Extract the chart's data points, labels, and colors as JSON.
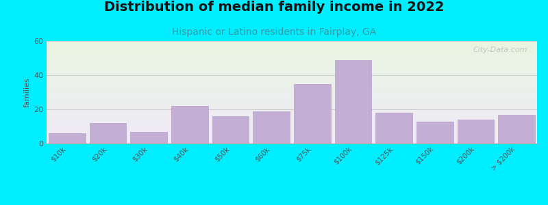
{
  "title": "Distribution of median family income in 2022",
  "subtitle": "Hispanic or Latino residents in Fairplay, GA",
  "categories": [
    "$10k",
    "$20k",
    "$30k",
    "$40k",
    "$50k",
    "$60k",
    "$75k",
    "$100k",
    "$125k",
    "$150k",
    "$200k",
    "> $200k"
  ],
  "values": [
    6,
    12,
    7,
    22,
    16,
    19,
    35,
    49,
    18,
    13,
    14,
    17
  ],
  "bar_color": "#c4afd4",
  "bar_edge_color": "#b8a0cc",
  "ylabel": "families",
  "ylim": [
    0,
    60
  ],
  "yticks": [
    0,
    20,
    40,
    60
  ],
  "background_outer": "#00eeff",
  "background_inner_top": "#e8f5e0",
  "background_inner_bottom": "#f0eaf8",
  "title_fontsize": 14,
  "subtitle_fontsize": 10,
  "subtitle_color": "#3a9aa0",
  "watermark": "City-Data.com",
  "grid_color": "#cccccc"
}
